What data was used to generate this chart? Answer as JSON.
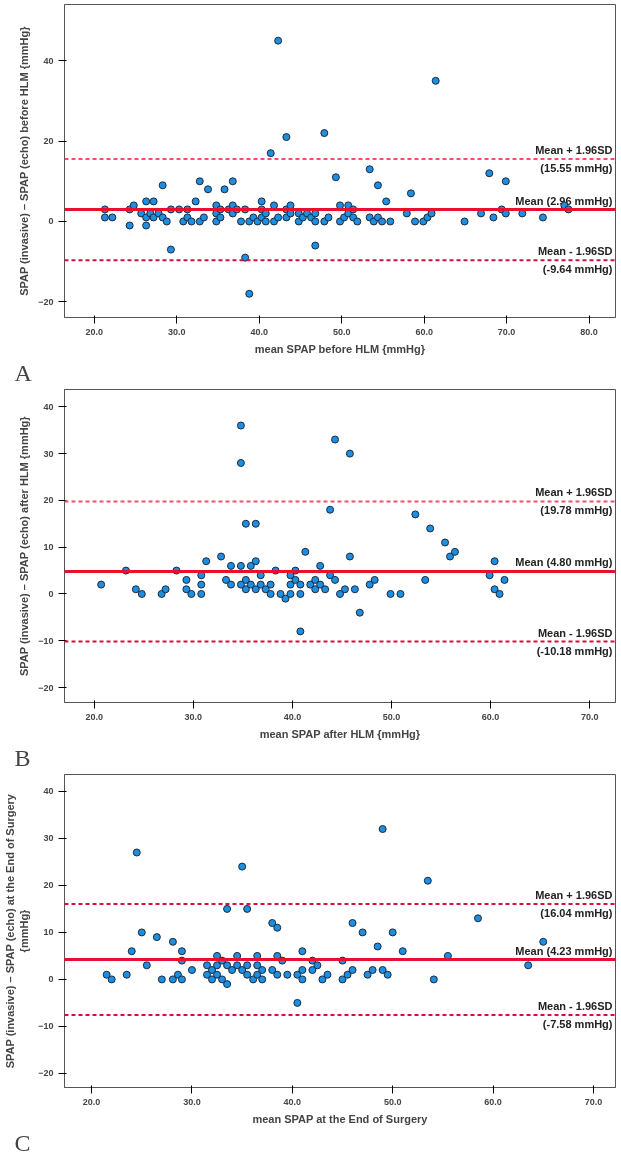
{
  "chart_data": [
    {
      "type": "scatter",
      "xlabel": "mean SPAP before HLM {mmHg}",
      "ylabel": "SPAP (invasive) – SPAP (echo) before HLM {mmHg}",
      "annotations": [
        "A"
      ],
      "marker": "circle",
      "grid": false,
      "xlim": [
        16.4,
        83.2
      ],
      "ylim": [
        -23.9,
        54
      ],
      "xticks": [
        {
          "value": 20,
          "label": "20.0"
        },
        {
          "value": 30,
          "label": "30.0"
        },
        {
          "value": 40,
          "label": "40.0"
        },
        {
          "value": 50,
          "label": "50.0"
        },
        {
          "value": 60,
          "label": "60.0"
        },
        {
          "value": 70,
          "label": "70.0"
        },
        {
          "value": 80,
          "label": "80.0"
        }
      ],
      "yticks": [
        -20,
        0,
        20,
        40
      ],
      "ref_lines": [
        {
          "axis": "y",
          "value": 15.55,
          "label": "Mean + 1.96SD\n(15.55 mmHg)",
          "color": "#f0506e",
          "line_style": "dashed"
        },
        {
          "axis": "y",
          "value": 2.96,
          "label": "Mean (2.96 mmHg)",
          "color": "#e8102e",
          "line_style": "solid"
        },
        {
          "axis": "y",
          "value": -9.64,
          "label": "Mean - 1.96SD\n(-9.64 mmHg)",
          "color": "#d0103e",
          "line_style": "dashed"
        }
      ],
      "series": [
        {
          "color": "#1e8fe0",
          "x": [
            21.3,
            21.3,
            22.2,
            24.3,
            24.3,
            24.8,
            25.7,
            26.3,
            26.3,
            26.3,
            26.8,
            27.2,
            27.2,
            27.8,
            28.3,
            28.3,
            28.8,
            29.3,
            29.3,
            30.3,
            30.8,
            31.3,
            31.3,
            31.8,
            32.3,
            32.8,
            32.8,
            33.3,
            33.8,
            34.8,
            34.8,
            34.8,
            35.3,
            35.3,
            35.8,
            36.3,
            36.8,
            36.8,
            36.8,
            37.3,
            37.8,
            38.3,
            38.3,
            38.8,
            38.8,
            39.3,
            39.8,
            40.3,
            40.3,
            40.3,
            40.8,
            40.8,
            41.4,
            41.8,
            41.8,
            42.3,
            42.3,
            43.3,
            43.3,
            43.3,
            43.8,
            43.8,
            44.8,
            44.8,
            45.3,
            45.8,
            46.3,
            46.8,
            46.8,
            46.8,
            47.9,
            47.9,
            48.4,
            49.3,
            49.8,
            49.8,
            50.3,
            50.8,
            50.8,
            51.4,
            51.4,
            51.9,
            53.4,
            53.4,
            53.9,
            54.4,
            54.4,
            54.9,
            55.4,
            55.9,
            57.9,
            58.4,
            58.9,
            59.9,
            60.4,
            60.9,
            61.4,
            64.9,
            66.9,
            67.9,
            68.4,
            69.4,
            69.9,
            69.9,
            71.9,
            74.4,
            77.0,
            77.5
          ],
          "values": [
            3,
            1,
            1,
            3,
            -1,
            4,
            2,
            5,
            1,
            -1,
            2,
            5,
            1,
            2,
            9,
            1,
            0,
            3,
            -7,
            3,
            0,
            3,
            1,
            0,
            5,
            10,
            0,
            1,
            8,
            4,
            2,
            0,
            3,
            1,
            8,
            3,
            10,
            4,
            2,
            3,
            0,
            3,
            -9,
            0,
            -18,
            1,
            0,
            5,
            3,
            1,
            2,
            0,
            17,
            4,
            0,
            45,
            1,
            21,
            3,
            1,
            4,
            2,
            2,
            0,
            1,
            2,
            1,
            2,
            0,
            -6,
            22,
            0,
            1,
            11,
            4,
            0,
            1,
            4,
            2,
            3,
            1,
            0,
            13,
            1,
            0,
            9,
            1,
            0,
            5,
            0,
            2,
            7,
            0,
            0,
            1,
            2,
            35,
            0,
            2,
            12,
            1,
            3,
            10,
            2,
            2,
            1,
            4,
            3
          ]
        }
      ]
    },
    {
      "type": "scatter",
      "xlabel": "mean SPAP after HLM {mmHg}",
      "ylabel": "SPAP (invasive) – SPAP (echo) after HLM {mmHg}",
      "annotations": [
        "B"
      ],
      "marker": "circle",
      "grid": false,
      "xlim": [
        17.0,
        72.6
      ],
      "ylim": [
        -23.2,
        43.7
      ],
      "xticks": [
        {
          "value": 20,
          "label": "20.0"
        },
        {
          "value": 30,
          "label": "30.0"
        },
        {
          "value": 40,
          "label": "40.0"
        },
        {
          "value": 50,
          "label": "50.0"
        },
        {
          "value": 60,
          "label": "60.0"
        },
        {
          "value": 70,
          "label": "70.0"
        }
      ],
      "yticks": [
        -20,
        -10,
        0,
        10,
        20,
        30,
        40
      ],
      "ref_lines": [
        {
          "axis": "y",
          "value": 19.78,
          "label": "Mean + 1.96SD\n(19.78 mmHg)",
          "color": "#f0506e",
          "line_style": "dashed"
        },
        {
          "axis": "y",
          "value": 4.8,
          "label": "Mean (4.80 mmHg)",
          "color": "#e8102e",
          "line_style": "solid"
        },
        {
          "axis": "y",
          "value": -10.18,
          "label": "Mean - 1.96SD\n(-10.18 mmHg)",
          "color": "#d0103e",
          "line_style": "dashed"
        }
      ],
      "series": [
        {
          "color": "#1e8fe0",
          "x": [
            20.7,
            23.2,
            24.2,
            24.8,
            26.8,
            27.2,
            28.3,
            29.3,
            29.3,
            29.8,
            30.8,
            30.8,
            30.8,
            31.3,
            32.8,
            33.3,
            33.8,
            33.8,
            34.8,
            34.8,
            34.8,
            34.8,
            35.3,
            35.3,
            35.3,
            35.8,
            35.8,
            36.3,
            36.3,
            36.3,
            36.8,
            36.8,
            37.3,
            37.8,
            37.8,
            38.3,
            38.8,
            39.3,
            39.8,
            39.8,
            39.8,
            40.3,
            40.3,
            40.8,
            40.8,
            40.8,
            41.3,
            41.8,
            42.3,
            42.3,
            42.8,
            42.8,
            43.3,
            43.8,
            43.8,
            44.3,
            44.3,
            44.8,
            45.3,
            45.8,
            45.8,
            46.3,
            46.8,
            47.8,
            48.3,
            49.9,
            50.9,
            52.4,
            53.4,
            53.9,
            55.4,
            55.9,
            56.4,
            59.9,
            60.4,
            60.4,
            60.9,
            61.4
          ],
          "values": [
            2,
            5,
            1,
            0,
            0,
            1,
            5,
            3,
            1,
            0,
            4,
            2,
            0,
            7,
            8,
            3,
            6,
            2,
            36,
            28,
            6,
            2,
            15,
            3,
            1,
            2,
            6,
            15,
            7,
            1,
            4,
            2,
            1,
            2,
            0,
            5,
            0,
            -1,
            4,
            2,
            0,
            5,
            3,
            2,
            0,
            -8,
            9,
            2,
            3,
            1,
            6,
            2,
            1,
            18,
            4,
            33,
            3,
            0,
            1,
            30,
            8,
            1,
            -4,
            2,
            3,
            0,
            0,
            17,
            3,
            14,
            11,
            8,
            9,
            4,
            7,
            1,
            0,
            3
          ]
        }
      ]
    },
    {
      "type": "scatter",
      "xlabel": "mean SPAP at the End of Surgery",
      "ylabel": "SPAP (invasive) – SPAP (echo) at the End of Surgery\n{mmHg}",
      "annotations": [
        "C"
      ],
      "marker": "circle",
      "grid": false,
      "xlim": [
        17.3,
        72.2
      ],
      "ylim": [
        -23.0,
        43.6
      ],
      "xticks": [
        {
          "value": 20,
          "label": "20.0"
        },
        {
          "value": 30,
          "label": "30.0"
        },
        {
          "value": 40,
          "label": "40.0"
        },
        {
          "value": 50,
          "label": "50.0"
        },
        {
          "value": 60,
          "label": "60.0"
        },
        {
          "value": 70,
          "label": "70.0"
        }
      ],
      "yticks": [
        -20,
        -10,
        0,
        10,
        20,
        30,
        40
      ],
      "ref_lines": [
        {
          "axis": "y",
          "value": 16.04,
          "label": "Mean + 1.96SD\n(16.04 mmHg)",
          "color": "#d8103e",
          "line_style": "dashed"
        },
        {
          "axis": "y",
          "value": 4.23,
          "label": "Mean (4.23 mmHg)",
          "color": "#e8102e",
          "line_style": "solid"
        },
        {
          "axis": "y",
          "value": -7.58,
          "label": "Mean - 1.96SD\n(-7.58 mmHg)",
          "color": "#d0103e",
          "line_style": "dashed"
        }
      ],
      "series": [
        {
          "color": "#1e8fe0",
          "x": [
            21.5,
            22.0,
            23.5,
            24.0,
            24.5,
            25.0,
            25.5,
            26.5,
            27.0,
            28.1,
            28.1,
            28.6,
            29.0,
            29.0,
            29.0,
            30.0,
            31.5,
            31.5,
            32.0,
            32.0,
            32.5,
            32.5,
            32.5,
            33.0,
            33.0,
            33.5,
            33.5,
            33.5,
            34.0,
            34.5,
            34.5,
            35.0,
            35.0,
            35.5,
            35.5,
            35.5,
            36.1,
            36.5,
            36.5,
            36.5,
            37.0,
            37.0,
            38.0,
            38.0,
            38.5,
            38.5,
            38.5,
            39.0,
            39.5,
            40.5,
            40.5,
            41.0,
            41.0,
            41.0,
            42.0,
            42.0,
            42.5,
            43.0,
            43.5,
            45.0,
            45.0,
            45.5,
            46.0,
            46.0,
            47.0,
            47.5,
            48.0,
            48.5,
            49.0,
            49.0,
            49.5,
            50.0,
            51.0,
            53.5,
            54.1,
            55.5,
            58.5,
            63.5,
            65.0
          ],
          "values": [
            1,
            0,
            1,
            6,
            27,
            10,
            3,
            9,
            0,
            8,
            0,
            1,
            6,
            4,
            0,
            2,
            3,
            1,
            2,
            0,
            5,
            3,
            1,
            4,
            0,
            15,
            3,
            -1,
            2,
            5,
            3,
            24,
            2,
            15,
            3,
            1,
            0,
            5,
            3,
            1,
            2,
            0,
            12,
            2,
            11,
            5,
            1,
            4,
            1,
            -5,
            1,
            6,
            2,
            0,
            4,
            2,
            3,
            0,
            1,
            4,
            0,
            1,
            12,
            2,
            10,
            1,
            2,
            7,
            32,
            2,
            1,
            10,
            6,
            21,
            0,
            5,
            13,
            3,
            8
          ]
        }
      ]
    }
  ]
}
